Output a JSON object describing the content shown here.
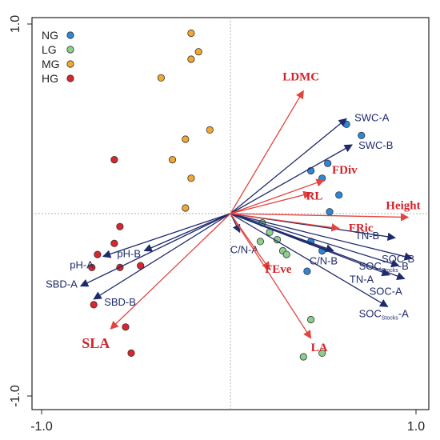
{
  "chart_data": {
    "type": "scatter",
    "xlim": [
      -1.0,
      1.0
    ],
    "ylim": [
      -1.0,
      1.0
    ],
    "x_ticks": [
      "-1.0",
      "1.0"
    ],
    "y_ticks": [
      "1.0",
      "-1.0"
    ],
    "reference_lines": {
      "x": 0,
      "y": 0
    },
    "legend_position": "top-left",
    "colors": {
      "NG": "#2f86d6",
      "LG": "#8ccf8c",
      "MG": "#f0a830",
      "HG": "#d8262c",
      "env_arrow": "#1f2a6b",
      "trait_arrow": "#e0453f"
    },
    "series": [
      {
        "name": "NG",
        "points": [
          [
            0.62,
            0.48
          ],
          [
            0.7,
            0.42
          ],
          [
            0.43,
            0.23
          ],
          [
            0.52,
            0.27
          ],
          [
            0.49,
            0.19
          ],
          [
            0.58,
            0.1
          ],
          [
            0.53,
            0.01
          ],
          [
            0.43,
            -0.15
          ],
          [
            0.49,
            -0.2
          ],
          [
            0.41,
            -0.31
          ]
        ]
      },
      {
        "name": "LG",
        "points": [
          [
            0.17,
            -0.05
          ],
          [
            0.21,
            -0.1
          ],
          [
            0.25,
            -0.14
          ],
          [
            0.16,
            -0.15
          ],
          [
            0.28,
            -0.2
          ],
          [
            0.3,
            -0.22
          ],
          [
            0.43,
            -0.57
          ],
          [
            0.49,
            -0.75
          ],
          [
            0.39,
            -0.77
          ]
        ]
      },
      {
        "name": "MG",
        "points": [
          [
            -0.21,
            0.97
          ],
          [
            -0.17,
            0.87
          ],
          [
            -0.21,
            0.83
          ],
          [
            -0.37,
            0.73
          ],
          [
            -0.11,
            0.45
          ],
          [
            -0.24,
            0.4
          ],
          [
            -0.31,
            0.29
          ],
          [
            -0.21,
            0.19
          ],
          [
            -0.24,
            0.03
          ]
        ]
      },
      {
        "name": "HG",
        "points": [
          [
            -0.62,
            0.29
          ],
          [
            -0.59,
            -0.07
          ],
          [
            -0.62,
            -0.16
          ],
          [
            -0.71,
            -0.22
          ],
          [
            -0.59,
            -0.29
          ],
          [
            -0.48,
            -0.28
          ],
          [
            -0.74,
            -0.29
          ],
          [
            -0.73,
            -0.49
          ],
          [
            -0.56,
            -0.61
          ],
          [
            -0.53,
            -0.75
          ]
        ]
      }
    ],
    "env_vectors": [
      {
        "label": "SWC-A",
        "x": 0.62,
        "y": 0.51
      },
      {
        "label": "SWC-B",
        "x": 0.65,
        "y": 0.37
      },
      {
        "label": "C/N-A",
        "x": 0.05,
        "y": -0.1
      },
      {
        "label": "TN-B",
        "x": 0.88,
        "y": -0.13
      },
      {
        "label": "C/N-B",
        "x": 0.55,
        "y": -0.2
      },
      {
        "label": "SOC-B",
        "x": 0.97,
        "y": -0.24
      },
      {
        "label": "SOCStocks-B",
        "x": 0.9,
        "y": -0.28
      },
      {
        "label": "TN-A",
        "x": 0.85,
        "y": -0.33
      },
      {
        "label": "SOC-A",
        "x": 0.93,
        "y": -0.35
      },
      {
        "label": "SOCStocks-A",
        "x": 0.84,
        "y": -0.5
      },
      {
        "label": "pH-A",
        "x": -0.68,
        "y": -0.23
      },
      {
        "label": "pH-B",
        "x": -0.46,
        "y": -0.2
      },
      {
        "label": "SBD-A",
        "x": -0.8,
        "y": -0.39
      },
      {
        "label": "SBD-B",
        "x": -0.73,
        "y": -0.46
      }
    ],
    "trait_vectors": [
      {
        "label": "LDMC",
        "x": 0.39,
        "y": 0.66,
        "size": 15
      },
      {
        "label": "FDiv",
        "x": 0.5,
        "y": 0.18,
        "size": 15
      },
      {
        "label": "RL",
        "x": 0.43,
        "y": 0.11,
        "size": 15
      },
      {
        "label": "Height",
        "x": 0.95,
        "y": -0.02,
        "size": 15
      },
      {
        "label": "FRic",
        "x": 0.58,
        "y": -0.08,
        "size": 15
      },
      {
        "label": "FEve",
        "x": 0.21,
        "y": -0.3,
        "size": 15
      },
      {
        "label": "LA",
        "x": 0.43,
        "y": -0.67,
        "size": 15
      },
      {
        "label": "SLA",
        "x": -0.64,
        "y": -0.62,
        "size": 18
      }
    ]
  }
}
